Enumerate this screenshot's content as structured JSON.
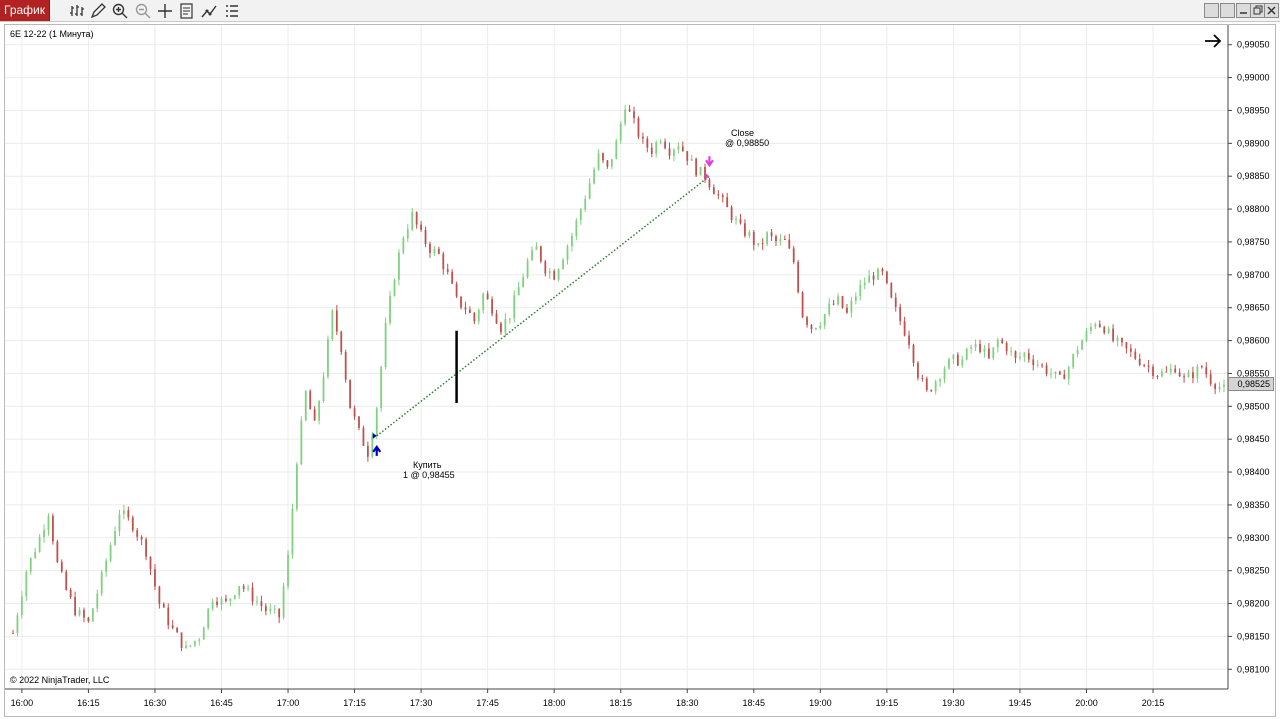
{
  "window": {
    "tab_label": "График",
    "toolbar_icons": [
      "bar-type-icon",
      "pencil-icon",
      "zoom-in-icon",
      "zoom-out-icon",
      "crosshair-icon",
      "properties-icon",
      "strategy-icon",
      "indicators-icon"
    ],
    "window_buttons": [
      "tile-icon",
      "cascade-icon",
      "minimize-icon",
      "restore-icon",
      "close-icon"
    ]
  },
  "chart": {
    "instrument_title": "6E 12-22 (1 Минута)",
    "copyright": "© 2022 NinjaTrader, LLC",
    "last_price_label": "0,98525",
    "buy_label_line1": "Купить",
    "buy_label_line2": "1 @ 0,98455",
    "close_label_line1": "Close",
    "close_label_line2": "@ 0,98850",
    "colors": {
      "up": "#7fd17f",
      "down": "#c0504d",
      "grid": "#ececec",
      "trade_line": "#2e7d32",
      "buy_marker": "#0000cc",
      "sell_marker": "#e040e0"
    }
  },
  "chart_data": {
    "type": "candlestick",
    "title": "6E 12-22 (1 Минута)",
    "xlabel": "",
    "ylabel": "",
    "ylim": [
      0.9807,
      0.9908
    ],
    "y_ticks": [
      "0,98100",
      "0,98150",
      "0,98200",
      "0,98250",
      "0,98300",
      "0,98350",
      "0,98400",
      "0,98450",
      "0,98500",
      "0,98550",
      "0,98600",
      "0,98650",
      "0,98700",
      "0,98750",
      "0,98800",
      "0,98850",
      "0,98900",
      "0,98950",
      "0,99000",
      "0,99050"
    ],
    "x_ticks": [
      "16:00",
      "16:15",
      "16:30",
      "16:45",
      "17:00",
      "17:15",
      "17:30",
      "17:45",
      "18:00",
      "18:15",
      "18:30",
      "18:45",
      "19:00",
      "19:15",
      "19:30",
      "19:45",
      "20:00",
      "20:15"
    ],
    "x_range_minutes": [
      "15:58",
      "20:31"
    ],
    "close_path": [
      [
        "15:58",
        0.98155
      ],
      [
        "16:01",
        0.9825
      ],
      [
        "16:04",
        0.983
      ],
      [
        "16:06",
        0.9834
      ],
      [
        "16:08",
        0.9826
      ],
      [
        "16:10",
        0.9822
      ],
      [
        "16:12",
        0.9819
      ],
      [
        "16:15",
        0.9817
      ],
      [
        "16:18",
        0.9824
      ],
      [
        "16:20",
        0.9829
      ],
      [
        "16:22",
        0.9834
      ],
      [
        "16:25",
        0.9832
      ],
      [
        "16:28",
        0.9828
      ],
      [
        "16:31",
        0.982
      ],
      [
        "16:34",
        0.9816
      ],
      [
        "16:37",
        0.9813
      ],
      [
        "16:40",
        0.9815
      ],
      [
        "16:43",
        0.9821
      ],
      [
        "16:46",
        0.982
      ],
      [
        "16:49",
        0.9823
      ],
      [
        "16:52",
        0.9821
      ],
      [
        "16:55",
        0.9819
      ],
      [
        "16:58",
        0.9818
      ],
      [
        "17:00",
        0.9827
      ],
      [
        "17:02",
        0.9842
      ],
      [
        "17:04",
        0.9852
      ],
      [
        "17:06",
        0.9847
      ],
      [
        "17:08",
        0.9855
      ],
      [
        "17:10",
        0.9864
      ],
      [
        "17:12",
        0.9859
      ],
      [
        "17:14",
        0.985
      ],
      [
        "17:16",
        0.9846
      ],
      [
        "17:18",
        0.9843
      ],
      [
        "17:20",
        0.985
      ],
      [
        "17:22",
        0.9862
      ],
      [
        "17:24",
        0.987
      ],
      [
        "17:26",
        0.9876
      ],
      [
        "17:28",
        0.9879
      ],
      [
        "17:30",
        0.9876
      ],
      [
        "17:32",
        0.9874
      ],
      [
        "17:34",
        0.9873
      ],
      [
        "17:36",
        0.987
      ],
      [
        "17:38",
        0.9866
      ],
      [
        "17:40",
        0.9865
      ],
      [
        "17:42",
        0.9863
      ],
      [
        "17:44",
        0.9867
      ],
      [
        "17:46",
        0.9865
      ],
      [
        "17:48",
        0.9862
      ],
      [
        "17:50",
        0.9864
      ],
      [
        "17:52",
        0.9868
      ],
      [
        "17:54",
        0.9872
      ],
      [
        "17:56",
        0.9874
      ],
      [
        "17:58",
        0.9871
      ],
      [
        "18:00",
        0.987
      ],
      [
        "18:02",
        0.9873
      ],
      [
        "18:04",
        0.9876
      ],
      [
        "18:06",
        0.988
      ],
      [
        "18:08",
        0.9884
      ],
      [
        "18:10",
        0.9888
      ],
      [
        "18:12",
        0.9886
      ],
      [
        "18:14",
        0.989
      ],
      [
        "18:16",
        0.9896
      ],
      [
        "18:18",
        0.9893
      ],
      [
        "18:20",
        0.989
      ],
      [
        "18:22",
        0.9889
      ],
      [
        "18:24",
        0.9891
      ],
      [
        "18:26",
        0.9889
      ],
      [
        "18:28",
        0.989
      ],
      [
        "18:30",
        0.9888
      ],
      [
        "18:32",
        0.9886
      ],
      [
        "18:34",
        0.9885
      ],
      [
        "18:36",
        0.9883
      ],
      [
        "18:38",
        0.9881
      ],
      [
        "18:40",
        0.9879
      ],
      [
        "18:42",
        0.9877
      ],
      [
        "18:44",
        0.9876
      ],
      [
        "18:46",
        0.9874
      ],
      [
        "18:48",
        0.9876
      ],
      [
        "18:50",
        0.9875
      ],
      [
        "18:52",
        0.9875
      ],
      [
        "18:54",
        0.9872
      ],
      [
        "18:56",
        0.9864
      ],
      [
        "18:58",
        0.9862
      ],
      [
        "19:00",
        0.9863
      ],
      [
        "19:02",
        0.9865
      ],
      [
        "19:04",
        0.9866
      ],
      [
        "19:06",
        0.9864
      ],
      [
        "19:08",
        0.9867
      ],
      [
        "19:10",
        0.9869
      ],
      [
        "19:12",
        0.987
      ],
      [
        "19:14",
        0.987
      ],
      [
        "19:16",
        0.9866
      ],
      [
        "19:18",
        0.9863
      ],
      [
        "19:20",
        0.986
      ],
      [
        "19:22",
        0.9855
      ],
      [
        "19:24",
        0.9852
      ],
      [
        "19:26",
        0.9854
      ],
      [
        "19:28",
        0.9856
      ],
      [
        "19:30",
        0.9857
      ],
      [
        "19:32",
        0.9857
      ],
      [
        "19:34",
        0.9859
      ],
      [
        "19:36",
        0.9859
      ],
      [
        "19:38",
        0.9857
      ],
      [
        "19:40",
        0.986
      ],
      [
        "19:42",
        0.9859
      ],
      [
        "19:44",
        0.9857
      ],
      [
        "19:46",
        0.9858
      ],
      [
        "19:48",
        0.9857
      ],
      [
        "19:50",
        0.9856
      ],
      [
        "19:52",
        0.9855
      ],
      [
        "19:54",
        0.9854
      ],
      [
        "19:56",
        0.9856
      ],
      [
        "19:58",
        0.9859
      ],
      [
        "20:00",
        0.9861
      ],
      [
        "20:02",
        0.9863
      ],
      [
        "20:04",
        0.9862
      ],
      [
        "20:06",
        0.986
      ],
      [
        "20:08",
        0.9859
      ],
      [
        "20:10",
        0.9858
      ],
      [
        "20:12",
        0.9857
      ],
      [
        "20:14",
        0.9856
      ],
      [
        "20:16",
        0.9855
      ],
      [
        "20:18",
        0.9855
      ],
      [
        "20:20",
        0.9856
      ],
      [
        "20:22",
        0.9854
      ],
      [
        "20:24",
        0.9855
      ],
      [
        "20:26",
        0.9856
      ],
      [
        "20:28",
        0.9854
      ],
      [
        "20:31",
        0.98525
      ]
    ],
    "trades": [
      {
        "side": "buy",
        "time": "17:20",
        "price": 0.98455
      },
      {
        "side": "close",
        "time": "18:35",
        "price": 0.9885
      }
    ],
    "last_price": 0.98525,
    "grid": true
  }
}
